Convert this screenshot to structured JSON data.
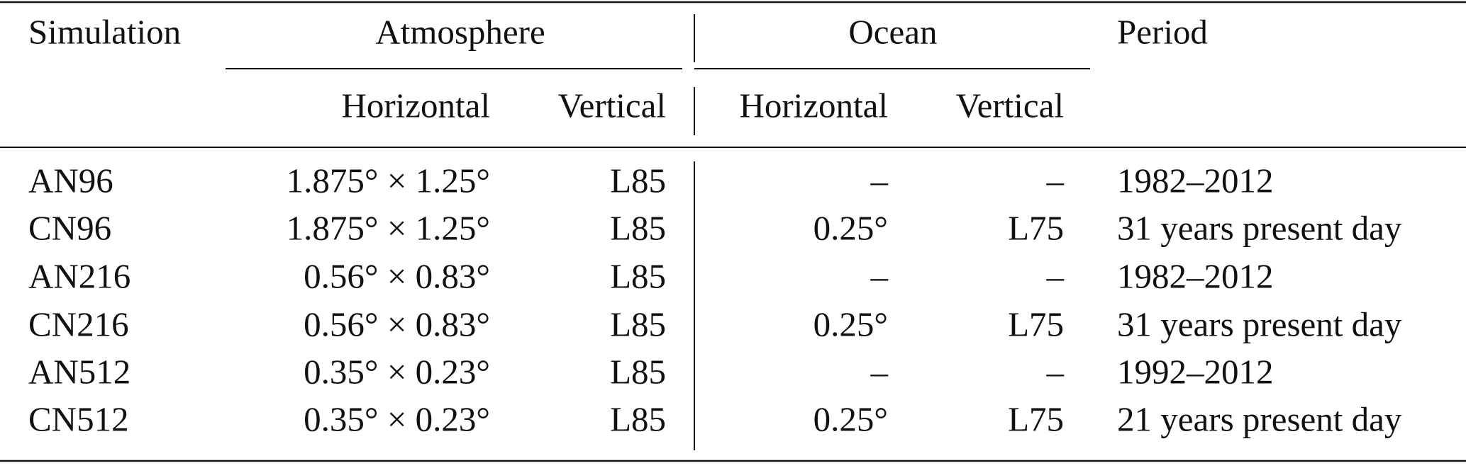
{
  "table": {
    "header": {
      "simulation": "Simulation",
      "atmosphere": "Atmosphere",
      "ocean": "Ocean",
      "period": "Period",
      "atm_horizontal": "Horizontal",
      "atm_vertical": "Vertical",
      "ocean_horizontal": "Horizontal",
      "ocean_vertical": "Vertical"
    },
    "rows": [
      [
        "AN96",
        "1.875° × 1.25°",
        "L85",
        "–",
        "–",
        "1982–2012"
      ],
      [
        "CN96",
        "1.875° × 1.25°",
        "L85",
        "0.25°",
        "L75",
        "31 years present day"
      ],
      [
        "AN216",
        "0.56° × 0.83°",
        "L85",
        "–",
        "–",
        "1982–2012"
      ],
      [
        "CN216",
        "0.56° × 0.83°",
        "L85",
        "0.25°",
        "L75",
        "31 years present day"
      ],
      [
        "AN512",
        "0.35° × 0.23°",
        "L85",
        "–",
        "–",
        "1992–2012"
      ],
      [
        "CN512",
        "0.35° × 0.23°",
        "L85",
        "0.25°",
        "L75",
        "21 years present day"
      ]
    ]
  }
}
